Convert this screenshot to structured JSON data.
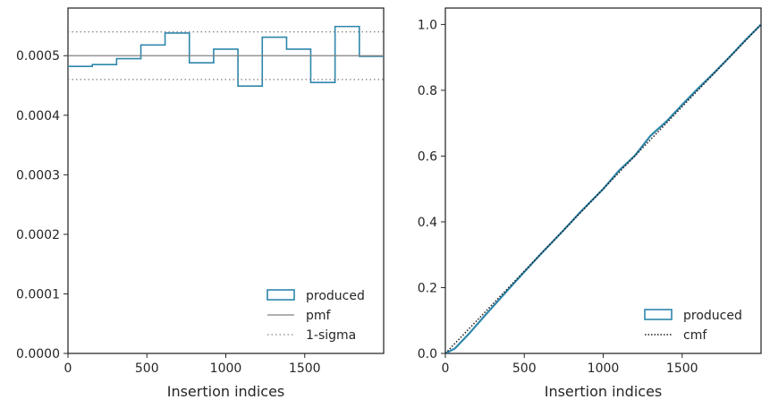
{
  "chart_data": [
    {
      "type": "step",
      "xlabel": "Insertion indices",
      "ylabel": "",
      "xlim": [
        0,
        2000
      ],
      "ylim": [
        0,
        0.00058
      ],
      "xticks": [
        "0",
        "500",
        "1000",
        "1500"
      ],
      "xtick_values": [
        0,
        500,
        1000,
        1500
      ],
      "yticks": [
        "0.0000",
        "0.0001",
        "0.0002",
        "0.0003",
        "0.0004",
        "0.0005"
      ],
      "ytick_values": [
        0,
        0.0001,
        0.0002,
        0.0003,
        0.0004,
        0.0005
      ],
      "series": [
        {
          "name": "produced",
          "kind": "histogram-step",
          "color": "#2e86ab",
          "bin_edges": [
            0,
            154,
            308,
            462,
            615,
            769,
            923,
            1077,
            1231,
            1385,
            1538,
            1692,
            1846,
            2000
          ],
          "values": [
            0.000482,
            0.000485,
            0.000495,
            0.000518,
            0.000538,
            0.000488,
            0.000511,
            0.000449,
            0.000531,
            0.000511,
            0.000455,
            0.000549,
            0.000499
          ]
        },
        {
          "name": "pmf",
          "kind": "hline",
          "color": "#808080",
          "y": 0.0005
        },
        {
          "name": "1-sigma",
          "kind": "hline-dotted",
          "color": "#808080",
          "y": [
            0.00046,
            0.00054
          ]
        }
      ],
      "legend": {
        "position": "lower-right",
        "entries": [
          "produced",
          "pmf",
          "1-sigma"
        ]
      }
    },
    {
      "type": "line",
      "xlabel": "Insertion indices",
      "ylabel": "",
      "xlim": [
        0,
        2000
      ],
      "ylim": [
        0,
        1.05
      ],
      "xticks": [
        "0",
        "500",
        "1000",
        "1500"
      ],
      "xtick_values": [
        0,
        500,
        1000,
        1500
      ],
      "yticks": [
        "0.0",
        "0.2",
        "0.4",
        "0.6",
        "0.8",
        "1.0"
      ],
      "ytick_values": [
        0,
        0.2,
        0.4,
        0.6,
        0.8,
        1.0
      ],
      "series": [
        {
          "name": "produced",
          "kind": "cumulative",
          "color": "#2e86ab",
          "x": [
            0,
            60,
            100,
            150,
            250,
            400,
            500,
            600,
            750,
            850,
            1000,
            1100,
            1200,
            1300,
            1400,
            1500,
            1600,
            1700,
            1800,
            1900,
            2000
          ],
          "y": [
            0,
            0.015,
            0.035,
            0.06,
            0.115,
            0.195,
            0.248,
            0.3,
            0.375,
            0.427,
            0.5,
            0.556,
            0.601,
            0.662,
            0.705,
            0.756,
            0.805,
            0.852,
            0.901,
            0.952,
            1.0
          ]
        },
        {
          "name": "cmf",
          "kind": "line-dotted",
          "color": "#1a1a1a",
          "x": [
            0,
            2000
          ],
          "y": [
            0,
            1.0
          ]
        }
      ],
      "legend": {
        "position": "lower-right",
        "entries": [
          "produced",
          "cmf"
        ]
      }
    }
  ]
}
